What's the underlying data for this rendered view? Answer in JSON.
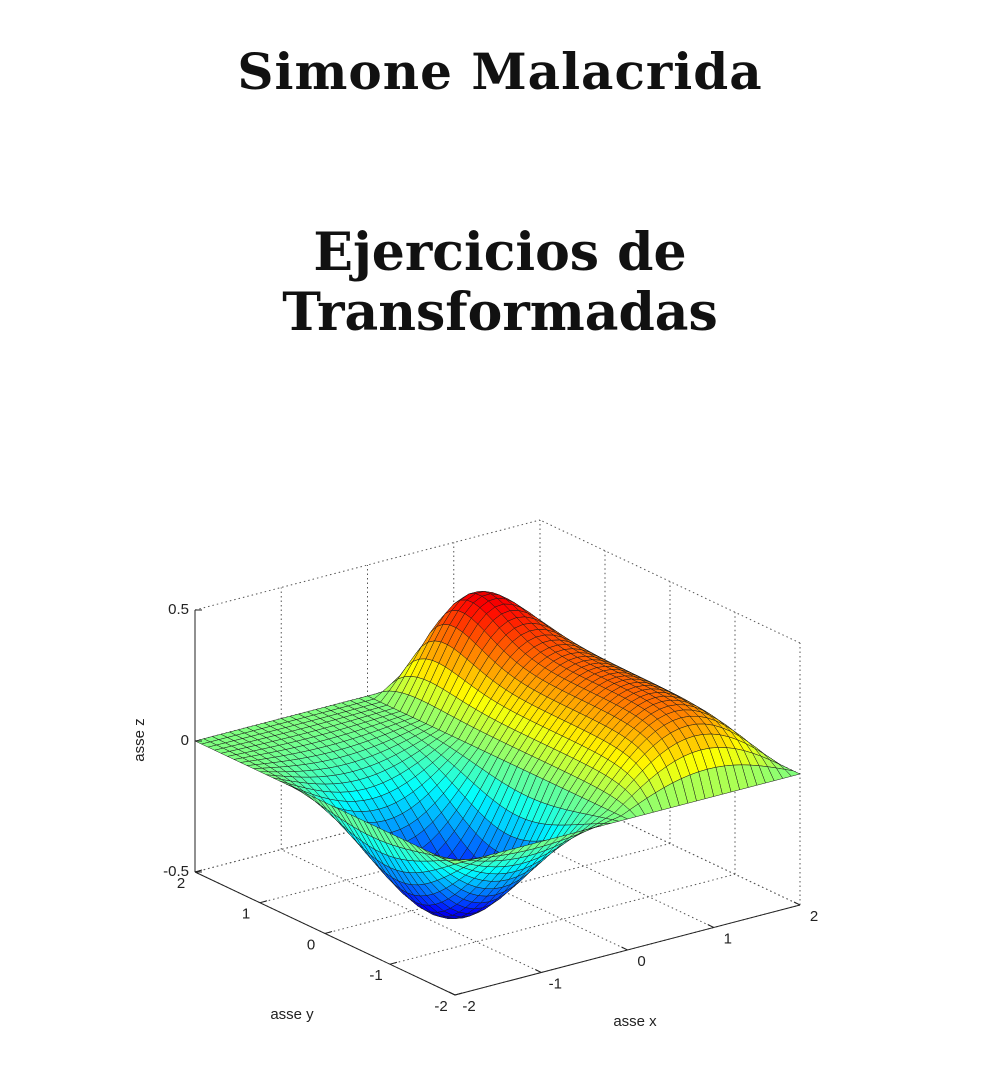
{
  "author": "Simone Malacrida",
  "title": [
    "Ejercicios de",
    "Transformadas"
  ],
  "figure": {
    "z_label": "asse z",
    "y_label": "asse y",
    "x_label": "asse x",
    "z_ticks": [
      "0.5",
      "0",
      "-0.5"
    ],
    "y_ticks": [
      "2",
      "1",
      "0",
      "-1",
      "-2"
    ],
    "x_ticks": [
      "-2",
      "-1",
      "0",
      "1",
      "2"
    ]
  }
}
